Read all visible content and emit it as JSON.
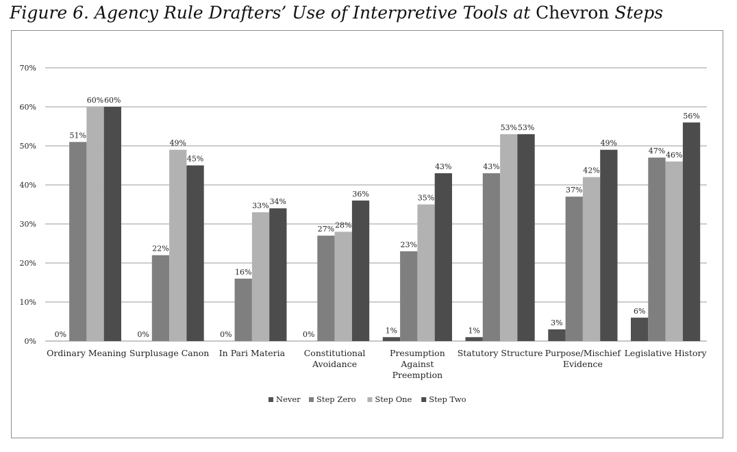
{
  "figure": {
    "title_italic_1": "Figure 6. Agency Rule Drafters’ Use of Interpretive Tools at ",
    "title_roman": "Chevron",
    "title_italic_2": " Steps"
  },
  "chart_data": {
    "type": "bar",
    "title": "Figure 6. Agency Rule Drafters’ Use of Interpretive Tools at Chevron Steps",
    "xlabel": "",
    "ylabel": "",
    "ylim": [
      0,
      70
    ],
    "yticks": [
      "0%",
      "10%",
      "20%",
      "30%",
      "40%",
      "50%",
      "60%",
      "70%"
    ],
    "grid": true,
    "legend_position": "bottom",
    "categories": [
      [
        "Ordinary Meaning"
      ],
      [
        "Surplusage Canon"
      ],
      [
        "In Pari Materia"
      ],
      [
        "Constitutional",
        "Avoidance"
      ],
      [
        "Presumption",
        "Against",
        "Preemption"
      ],
      [
        "Statutory Structure"
      ],
      [
        "Purpose/Mischief",
        "Evidence"
      ],
      [
        "Legislative History"
      ]
    ],
    "series": [
      {
        "name": "Never",
        "color": "#505050",
        "values": [
          0,
          0,
          0,
          0,
          1,
          1,
          3,
          6
        ]
      },
      {
        "name": "Step Zero",
        "color": "#7f7f7f",
        "values": [
          51,
          22,
          16,
          27,
          23,
          43,
          37,
          47
        ]
      },
      {
        "name": "Step One",
        "color": "#b2b2b2",
        "values": [
          60,
          49,
          33,
          28,
          35,
          53,
          42,
          46
        ]
      },
      {
        "name": "Step Two",
        "color": "#4c4c4c",
        "values": [
          60,
          45,
          34,
          36,
          43,
          53,
          49,
          56
        ]
      }
    ],
    "value_suffix": "%"
  }
}
